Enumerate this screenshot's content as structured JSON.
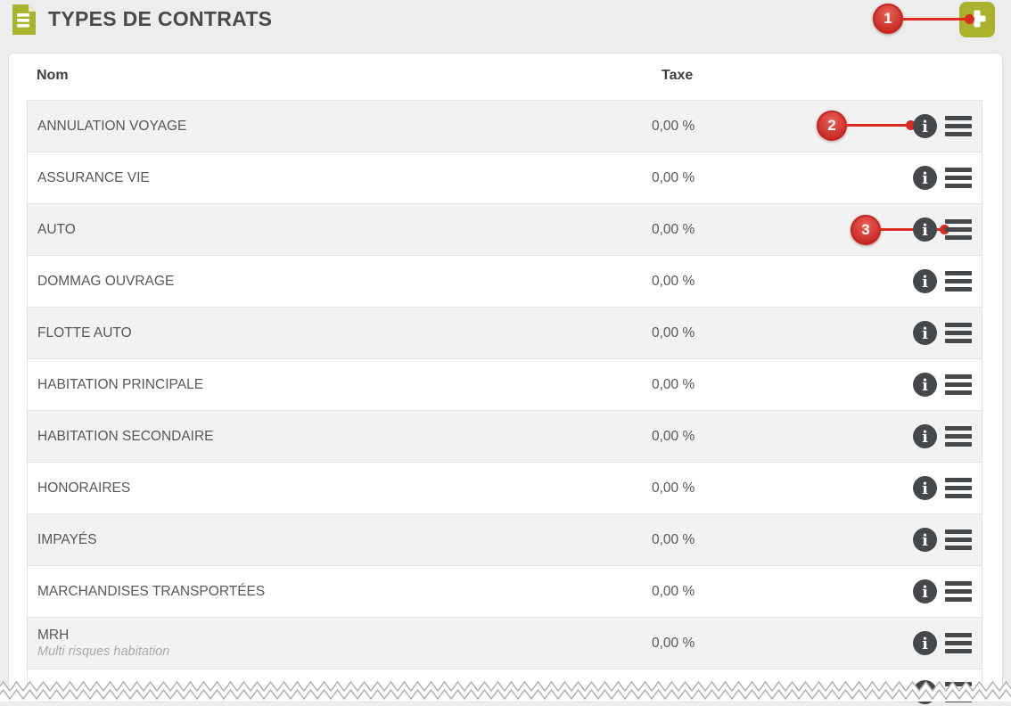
{
  "page": {
    "title": "TYPES DE CONTRATS"
  },
  "header": {
    "icon": "document-icon",
    "add_button": {
      "icon": "plus-icon"
    }
  },
  "table": {
    "columns": [
      "Nom",
      "Taxe"
    ],
    "rows": [
      {
        "name": "ANNULATION VOYAGE",
        "taxe": "0,00 %"
      },
      {
        "name": "ASSURANCE VIE",
        "taxe": "0,00 %"
      },
      {
        "name": "AUTO",
        "taxe": "0,00 %"
      },
      {
        "name": "DOMMAG OUVRAGE",
        "taxe": "0,00 %"
      },
      {
        "name": "FLOTTE AUTO",
        "taxe": "0,00 %"
      },
      {
        "name": "HABITATION PRINCIPALE",
        "taxe": "0,00 %"
      },
      {
        "name": "HABITATION SECONDAIRE",
        "taxe": "0,00 %"
      },
      {
        "name": "HONORAIRES",
        "taxe": "0,00 %"
      },
      {
        "name": "IMPAYÉS",
        "taxe": "0,00 %"
      },
      {
        "name": "MARCHANDISES TRANSPORTÉES",
        "taxe": "0,00 %"
      },
      {
        "name": "MRH",
        "subtitle": "Multi risques habitation",
        "taxe": "0,00 %"
      }
    ],
    "row_actions": [
      "info-icon",
      "menu-icon"
    ]
  },
  "callouts": [
    {
      "label": "1",
      "target": "add-button"
    },
    {
      "label": "2",
      "target": "info-icon"
    },
    {
      "label": "3",
      "target": "menu-icon"
    }
  ],
  "colors": {
    "accent_green": "#a9b22d",
    "callout_red": "#db2a20",
    "icon_dark": "#45484a",
    "stripe_gray": "#f2f2f2"
  }
}
